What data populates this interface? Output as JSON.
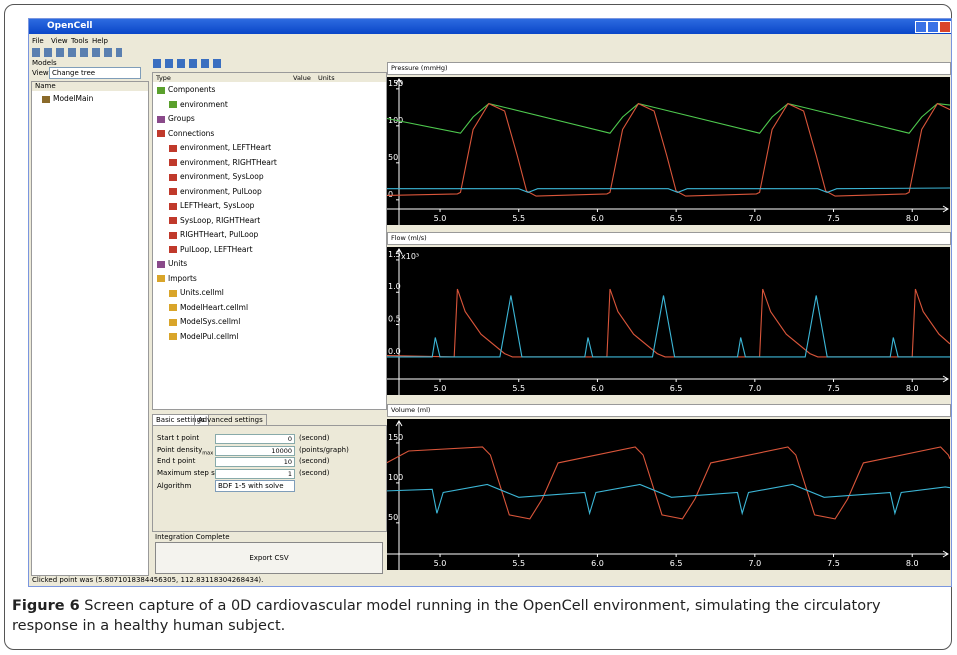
{
  "window": {
    "title": "OpenCell",
    "menu": [
      "File",
      "View",
      "Tools",
      "Help"
    ]
  },
  "models": {
    "header": "Models",
    "view_label": "View",
    "view_value": "Change tree",
    "column": "Name",
    "item": "ModelMain"
  },
  "tree": {
    "columns": [
      "Type",
      "Value",
      "Units"
    ],
    "items": [
      "Components",
      "environment",
      "Groups",
      "Connections",
      "environment, LEFTHeart",
      "environment, RIGHTHeart",
      "environment, SysLoop",
      "environment, PulLoop",
      "LEFTHeart, SysLoop",
      "SysLoop, RIGHTHeart",
      "RIGHTHeart, PulLoop",
      "PulLoop, LEFTHeart",
      "Units",
      "Imports",
      "Units.cellml",
      "ModelHeart.cellml",
      "ModelSys.cellml",
      "ModelPul.cellml"
    ]
  },
  "settings": {
    "tabs": [
      "Basic settings",
      "Advanced settings"
    ],
    "rows": [
      {
        "label": "Start t point",
        "value": 0,
        "unit": "(second)"
      },
      {
        "label": "Point density",
        "sub": "max",
        "value": 10000,
        "unit": "(points/graph)"
      },
      {
        "label": "End t point",
        "value": 10,
        "unit": "(second)"
      },
      {
        "label": "Maximum step size",
        "value": 1,
        "unit": "(second)"
      }
    ],
    "algorithm_label": "Algorithm",
    "algorithm": "BDF 1-5 with solve",
    "status": "Integration Complete",
    "button": "Export CSV"
  },
  "status": "Clicked point was (5.8071018384456305, 112.83118304268434).",
  "caption": {
    "label": "Figure 6",
    "text": " Screen capture of a 0D cardiovascular model running in the OpenCell environment, simulating the circulatory response in a healthy human subject."
  },
  "chart_data": [
    {
      "type": "line",
      "title": "Pressure (mmHg)",
      "xlim": [
        4.663,
        8.24
      ],
      "ylim": [
        -34,
        166
      ],
      "xticks": [
        {
          "value": 5,
          "label": "5.0"
        },
        {
          "value": 5.5,
          "label": "5.5"
        },
        {
          "value": 6,
          "label": "6.0"
        },
        {
          "value": 6.5,
          "label": "6.5"
        },
        {
          "value": 7,
          "label": "7.0"
        },
        {
          "value": 7.5,
          "label": "7.5"
        },
        {
          "value": 8,
          "label": "8.0"
        }
      ],
      "yticks": [
        0,
        50,
        100,
        150
      ],
      "series": [
        {
          "color": "#4ec94e",
          "x": [
            4.66,
            5.13,
            5.21,
            5.31,
            5.43,
            6.08,
            6.16,
            6.26,
            6.38,
            7.03,
            7.11,
            7.21,
            7.33,
            7.98,
            8.06,
            8.16,
            8.24
          ],
          "values": [
            110,
            90,
            112,
            130,
            124,
            90,
            112,
            130,
            124,
            90,
            112,
            130,
            124,
            90,
            112,
            130,
            128
          ]
        },
        {
          "color": "#d9553a",
          "x": [
            4.66,
            5.11,
            5.13,
            5.21,
            5.31,
            5.41,
            5.49,
            5.55,
            5.61,
            6.06,
            6.08,
            6.16,
            6.26,
            6.36,
            6.44,
            6.5,
            6.56,
            7.01,
            7.03,
            7.11,
            7.21,
            7.31,
            7.39,
            7.45,
            7.51,
            7.96,
            7.98,
            8.06,
            8.16,
            8.24
          ],
          "values": [
            6,
            8,
            10,
            95,
            130,
            120,
            60,
            12,
            5,
            8,
            10,
            95,
            130,
            120,
            60,
            12,
            5,
            8,
            10,
            95,
            130,
            120,
            60,
            12,
            5,
            8,
            10,
            95,
            130,
            122
          ]
        },
        {
          "color": "#3cb6d6",
          "x": [
            4.66,
            5.5,
            5.56,
            5.62,
            6.45,
            6.51,
            6.57,
            7.4,
            7.46,
            7.52,
            8.24
          ],
          "values": [
            15,
            15,
            10,
            15,
            15,
            10,
            15,
            15,
            10,
            15,
            16
          ]
        }
      ]
    },
    {
      "type": "line",
      "title": "Flow (ml/s)",
      "annotation": "x10³",
      "xlim": [
        4.663,
        8.24
      ],
      "ylim": [
        -0.59,
        1.7
      ],
      "xticks": [
        {
          "value": 5,
          "label": "5.0"
        },
        {
          "value": 5.5,
          "label": "5.5"
        },
        {
          "value": 6,
          "label": "6.0"
        },
        {
          "value": 6.5,
          "label": "6.5"
        },
        {
          "value": 7,
          "label": "7.0"
        },
        {
          "value": 7.5,
          "label": "7.5"
        },
        {
          "value": 8,
          "label": "8.0"
        }
      ],
      "yticks": [
        {
          "value": 0,
          "label": "0.0"
        },
        {
          "value": 0.5,
          "label": "0.5"
        },
        {
          "value": 1,
          "label": "1.0"
        },
        {
          "value": 1.5,
          "label": "1.5"
        }
      ],
      "series": [
        {
          "color": "#d9553a",
          "x": [
            4.66,
            5.09,
            5.11,
            5.16,
            5.26,
            5.41,
            5.46,
            6.06,
            6.08,
            6.13,
            6.23,
            6.38,
            6.43,
            7.03,
            7.05,
            7.1,
            7.2,
            7.35,
            7.4,
            8,
            8.02,
            8.07,
            8.17,
            8.24
          ],
          "values": [
            0.02,
            0,
            1.05,
            0.7,
            0.35,
            0.05,
            0,
            0,
            1.05,
            0.7,
            0.35,
            0.05,
            0,
            0,
            1.05,
            0.7,
            0.35,
            0.05,
            0,
            0,
            1.05,
            0.7,
            0.35,
            0.2
          ]
        },
        {
          "color": "#3cb6d6",
          "x": [
            4.66,
            4.95,
            4.97,
            5,
            5.38,
            5.45,
            5.52,
            5.92,
            5.94,
            5.97,
            6.35,
            6.42,
            6.49,
            6.89,
            6.91,
            6.94,
            7.32,
            7.39,
            7.46,
            7.86,
            7.88,
            7.91,
            8.24
          ],
          "values": [
            0,
            0,
            0.3,
            0,
            0,
            0.95,
            0,
            0,
            0.3,
            0,
            0,
            0.95,
            0,
            0,
            0.3,
            0,
            0,
            0.95,
            0,
            0,
            0.3,
            0,
            0
          ]
        }
      ]
    },
    {
      "type": "line",
      "title": "Volume (ml)",
      "xlim": [
        4.663,
        8.24
      ],
      "ylim": [
        -9,
        180
      ],
      "xticks": [
        {
          "value": 5,
          "label": "5.0"
        },
        {
          "value": 5.5,
          "label": "5.5"
        },
        {
          "value": 6,
          "label": "6.0"
        },
        {
          "value": 6.5,
          "label": "6.5"
        },
        {
          "value": 7,
          "label": "7.0"
        },
        {
          "value": 7.5,
          "label": "7.5"
        },
        {
          "value": 8,
          "label": "8.0"
        }
      ],
      "yticks": [
        50,
        100,
        150
      ],
      "series": [
        {
          "color": "#d9553a",
          "x": [
            4.66,
            4.8,
            5.27,
            5.32,
            5.44,
            5.57,
            5.65,
            5.75,
            6.24,
            6.29,
            6.41,
            6.54,
            6.62,
            6.72,
            7.21,
            7.26,
            7.38,
            7.51,
            7.59,
            7.69,
            8.18,
            8.23,
            8.24
          ],
          "values": [
            125,
            140,
            145,
            135,
            60,
            55,
            80,
            125,
            145,
            135,
            60,
            55,
            80,
            125,
            145,
            135,
            60,
            55,
            80,
            125,
            145,
            135,
            130
          ]
        },
        {
          "color": "#3cb6d6",
          "x": [
            4.66,
            4.95,
            4.98,
            5.02,
            5.3,
            5.5,
            5.92,
            5.95,
            5.99,
            6.27,
            6.47,
            6.89,
            6.92,
            6.96,
            7.24,
            7.44,
            7.86,
            7.89,
            7.93,
            8.21,
            8.24
          ],
          "values": [
            90,
            92,
            62,
            88,
            98,
            82,
            88,
            62,
            88,
            98,
            82,
            88,
            62,
            88,
            98,
            82,
            88,
            62,
            88,
            95,
            94
          ]
        }
      ]
    }
  ]
}
